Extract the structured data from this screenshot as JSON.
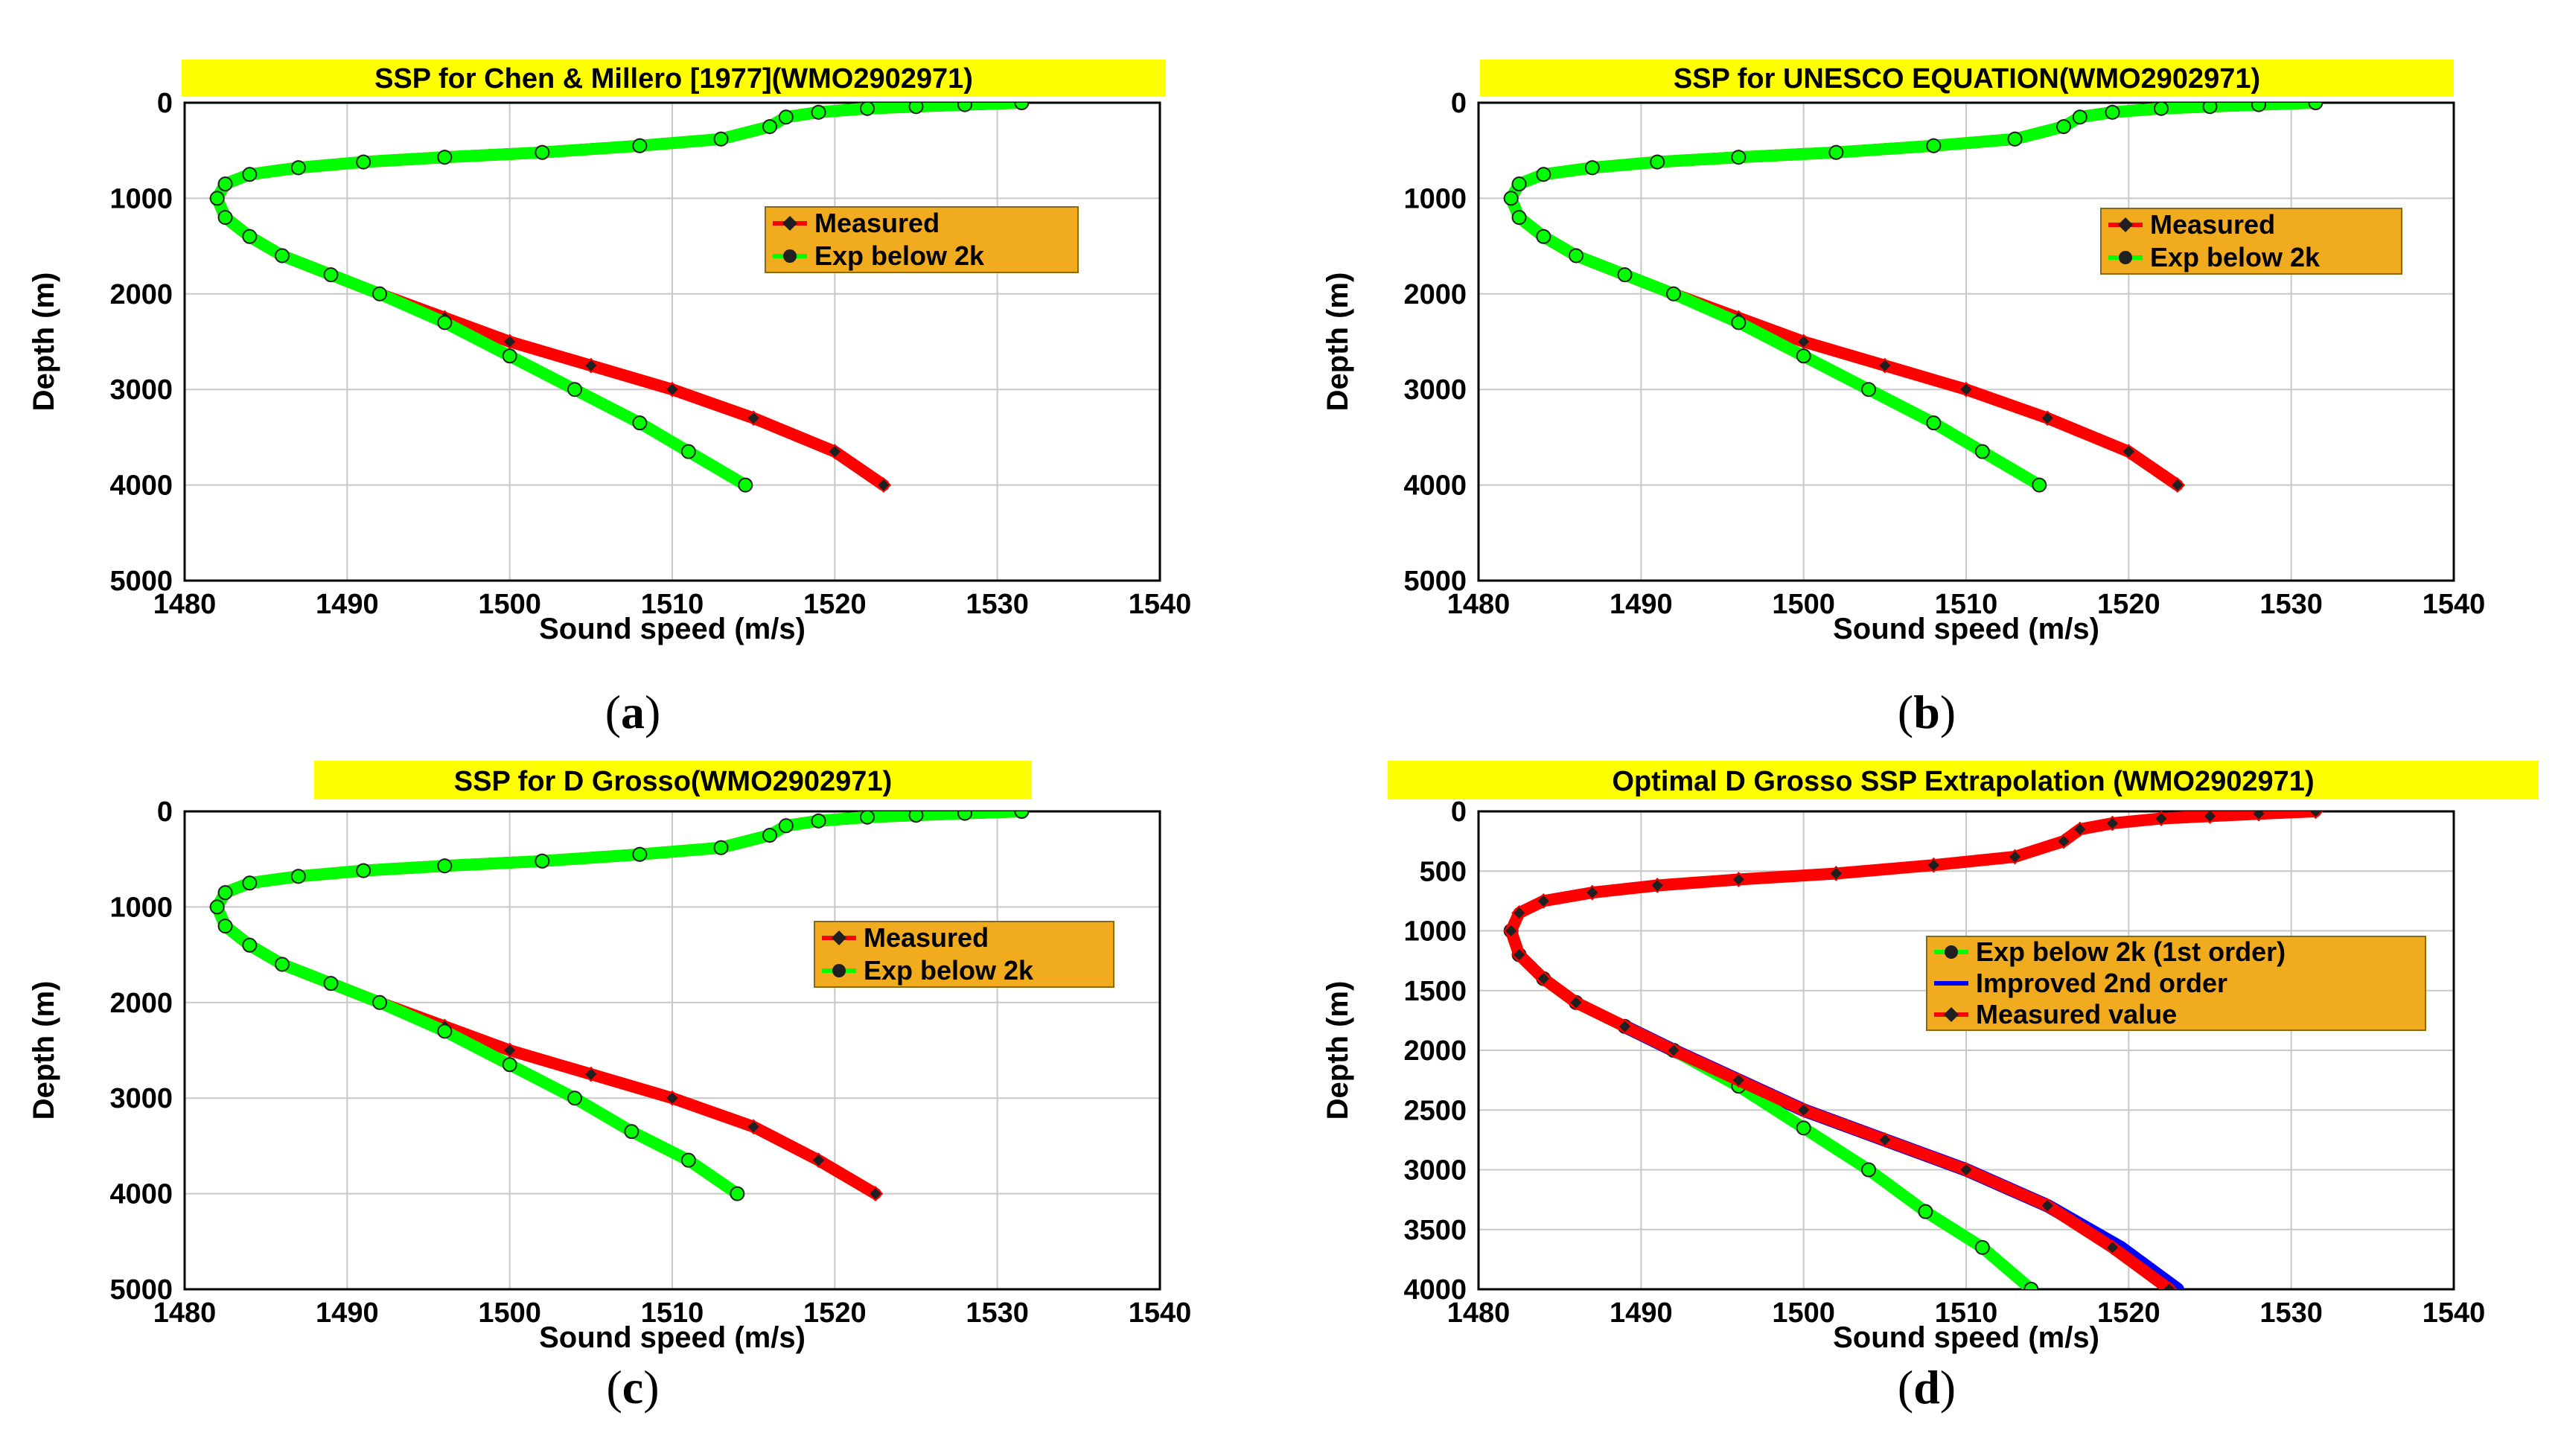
{
  "colors": {
    "measured": "#ff0000",
    "exp": "#00ff00",
    "improved": "#0000ff",
    "title_bg": "#ffff00",
    "legend_bg": "#f0ab1e",
    "grid": "#c8c8c8",
    "marker_dark": "#202020"
  },
  "chart_data": [
    {
      "id": "a",
      "type": "line",
      "panel_label": "a",
      "title": "SSP for Chen & Millero [1977](WMO2902971)",
      "xlabel": "Sound speed (m/s)",
      "ylabel": "Depth (m)",
      "xlim": [
        1480,
        1540
      ],
      "ylim": [
        0,
        5000
      ],
      "xticks": [
        1480,
        1490,
        1500,
        1510,
        1520,
        1530,
        1540
      ],
      "yticks": [
        0,
        1000,
        2000,
        3000,
        4000,
        5000
      ],
      "xtick_labels": [
        "1480",
        "1490",
        "1500",
        "1510",
        "1520",
        "1530",
        "1540"
      ],
      "ytick_labels": [
        "0",
        "1000",
        "2000",
        "3000",
        "4000",
        "5000"
      ],
      "legend": [
        "Measured",
        "Exp below 2k"
      ],
      "series": [
        {
          "name": "Measured",
          "x": [
            1531.5,
            1528,
            1525,
            1522,
            1519,
            1517,
            1516,
            1513,
            1508,
            1502,
            1496,
            1491,
            1487,
            1484,
            1482.5,
            1482,
            1482.5,
            1484,
            1486,
            1489,
            1492,
            1496,
            1500,
            1505,
            1510,
            1515,
            1520,
            1523
          ],
          "y": [
            0,
            20,
            40,
            60,
            100,
            150,
            250,
            380,
            450,
            520,
            570,
            620,
            680,
            750,
            850,
            1000,
            1200,
            1400,
            1600,
            1800,
            2000,
            2250,
            2500,
            2750,
            3000,
            3300,
            3650,
            4000
          ]
        },
        {
          "name": "Exp below 2k",
          "x": [
            1531.5,
            1528,
            1525,
            1522,
            1519,
            1517,
            1516,
            1513,
            1508,
            1502,
            1496,
            1491,
            1487,
            1484,
            1482.5,
            1482,
            1482.5,
            1484,
            1486,
            1489,
            1492,
            1496,
            1500,
            1504,
            1508,
            1511,
            1514.5
          ],
          "y": [
            0,
            20,
            40,
            60,
            100,
            150,
            250,
            380,
            450,
            520,
            570,
            620,
            680,
            750,
            850,
            1000,
            1200,
            1400,
            1600,
            1800,
            2000,
            2300,
            2650,
            3000,
            3350,
            3650,
            4000
          ]
        }
      ]
    },
    {
      "id": "b",
      "type": "line",
      "panel_label": "b",
      "title": "SSP for UNESCO EQUATION(WMO2902971)",
      "xlabel": "Sound speed (m/s)",
      "ylabel": "Depth (m)",
      "xlim": [
        1480,
        1540
      ],
      "ylim": [
        0,
        5000
      ],
      "xticks": [
        1480,
        1490,
        1500,
        1510,
        1520,
        1530,
        1540
      ],
      "yticks": [
        0,
        1000,
        2000,
        3000,
        4000,
        5000
      ],
      "xtick_labels": [
        "1480",
        "1490",
        "1500",
        "1510",
        "1520",
        "1530",
        "1540"
      ],
      "ytick_labels": [
        "0",
        "1000",
        "2000",
        "3000",
        "4000",
        "5000"
      ],
      "legend": [
        "Measured",
        "Exp below 2k"
      ],
      "series": [
        {
          "name": "Measured",
          "x": [
            1531.5,
            1528,
            1525,
            1522,
            1519,
            1517,
            1516,
            1513,
            1508,
            1502,
            1496,
            1491,
            1487,
            1484,
            1482.5,
            1482,
            1482.5,
            1484,
            1486,
            1489,
            1492,
            1496,
            1500,
            1505,
            1510,
            1515,
            1520,
            1523
          ],
          "y": [
            0,
            20,
            40,
            60,
            100,
            150,
            250,
            380,
            450,
            520,
            570,
            620,
            680,
            750,
            850,
            1000,
            1200,
            1400,
            1600,
            1800,
            2000,
            2250,
            2500,
            2750,
            3000,
            3300,
            3650,
            4000
          ]
        },
        {
          "name": "Exp below 2k",
          "x": [
            1531.5,
            1528,
            1525,
            1522,
            1519,
            1517,
            1516,
            1513,
            1508,
            1502,
            1496,
            1491,
            1487,
            1484,
            1482.5,
            1482,
            1482.5,
            1484,
            1486,
            1489,
            1492,
            1496,
            1500,
            1504,
            1508,
            1511,
            1514.5
          ],
          "y": [
            0,
            20,
            40,
            60,
            100,
            150,
            250,
            380,
            450,
            520,
            570,
            620,
            680,
            750,
            850,
            1000,
            1200,
            1400,
            1600,
            1800,
            2000,
            2300,
            2650,
            3000,
            3350,
            3650,
            4000
          ]
        }
      ]
    },
    {
      "id": "c",
      "type": "line",
      "panel_label": "c",
      "title": "SSP for D Grosso(WMO2902971)",
      "xlabel": "Sound speed (m/s)",
      "ylabel": "Depth (m)",
      "xlim": [
        1480,
        1540
      ],
      "ylim": [
        0,
        5000
      ],
      "xticks": [
        1480,
        1490,
        1500,
        1510,
        1520,
        1530,
        1540
      ],
      "yticks": [
        0,
        1000,
        2000,
        3000,
        4000,
        5000
      ],
      "xtick_labels": [
        "1480",
        "1490",
        "1500",
        "1510",
        "1520",
        "1530",
        "1540"
      ],
      "ytick_labels": [
        "0",
        "1000",
        "2000",
        "3000",
        "4000",
        "5000"
      ],
      "legend": [
        "Measured",
        "Exp below 2k"
      ],
      "series": [
        {
          "name": "Measured",
          "x": [
            1531.5,
            1528,
            1525,
            1522,
            1519,
            1517,
            1516,
            1513,
            1508,
            1502,
            1496,
            1491,
            1487,
            1484,
            1482.5,
            1482,
            1482.5,
            1484,
            1486,
            1489,
            1492,
            1496,
            1500,
            1505,
            1510,
            1515,
            1519,
            1522.5
          ],
          "y": [
            0,
            20,
            40,
            60,
            100,
            150,
            250,
            380,
            450,
            520,
            570,
            620,
            680,
            750,
            850,
            1000,
            1200,
            1400,
            1600,
            1800,
            2000,
            2250,
            2500,
            2750,
            3000,
            3300,
            3650,
            4000
          ]
        },
        {
          "name": "Exp below 2k",
          "x": [
            1531.5,
            1528,
            1525,
            1522,
            1519,
            1517,
            1516,
            1513,
            1508,
            1502,
            1496,
            1491,
            1487,
            1484,
            1482.5,
            1482,
            1482.5,
            1484,
            1486,
            1489,
            1492,
            1496,
            1500,
            1504,
            1507.5,
            1511,
            1514
          ],
          "y": [
            0,
            20,
            40,
            60,
            100,
            150,
            250,
            380,
            450,
            520,
            570,
            620,
            680,
            750,
            850,
            1000,
            1200,
            1400,
            1600,
            1800,
            2000,
            2300,
            2650,
            3000,
            3350,
            3650,
            4000
          ]
        }
      ]
    },
    {
      "id": "d",
      "type": "line",
      "panel_label": "d",
      "title": "Optimal D Grosso SSP Extrapolation (WMO2902971)",
      "xlabel": "Sound speed (m/s)",
      "ylabel": "Depth (m)",
      "xlim": [
        1480,
        1540
      ],
      "ylim": [
        0,
        4000
      ],
      "xticks": [
        1480,
        1490,
        1500,
        1510,
        1520,
        1530,
        1540
      ],
      "yticks": [
        0,
        500,
        1000,
        1500,
        2000,
        2500,
        3000,
        3500,
        4000
      ],
      "xtick_labels": [
        "1480",
        "1490",
        "1500",
        "1510",
        "1520",
        "1530",
        "1540"
      ],
      "ytick_labels": [
        "0",
        "500",
        "1000",
        "1500",
        "2000",
        "2500",
        "3000",
        "3500",
        "4000"
      ],
      "legend": [
        "Exp below 2k (1st order)",
        "Improved 2nd order",
        "Measured value"
      ],
      "series": [
        {
          "name": "Exp below 2k (1st order)",
          "x": [
            1482,
            1482.5,
            1484,
            1486,
            1489,
            1492,
            1496,
            1500,
            1504,
            1507.5,
            1511,
            1514
          ],
          "y": [
            1000,
            1200,
            1400,
            1600,
            1800,
            2000,
            2300,
            2650,
            3000,
            3350,
            3650,
            4000
          ]
        },
        {
          "name": "Improved 2nd order",
          "x": [
            1489,
            1492,
            1496,
            1500,
            1505,
            1510,
            1515,
            1519.5,
            1523
          ],
          "y": [
            1800,
            2000,
            2250,
            2500,
            2750,
            3000,
            3300,
            3650,
            4000
          ]
        },
        {
          "name": "Measured value",
          "x": [
            1531.5,
            1528,
            1525,
            1522,
            1519,
            1517,
            1516,
            1513,
            1508,
            1502,
            1496,
            1491,
            1487,
            1484,
            1482.5,
            1482,
            1482.5,
            1484,
            1486,
            1489,
            1492,
            1496,
            1500,
            1505,
            1510,
            1515,
            1519,
            1522.5
          ],
          "y": [
            0,
            20,
            40,
            60,
            100,
            150,
            250,
            380,
            450,
            520,
            570,
            620,
            680,
            750,
            850,
            1000,
            1200,
            1400,
            1600,
            1800,
            2000,
            2250,
            2500,
            2750,
            3000,
            3300,
            3650,
            4000
          ]
        }
      ]
    }
  ]
}
